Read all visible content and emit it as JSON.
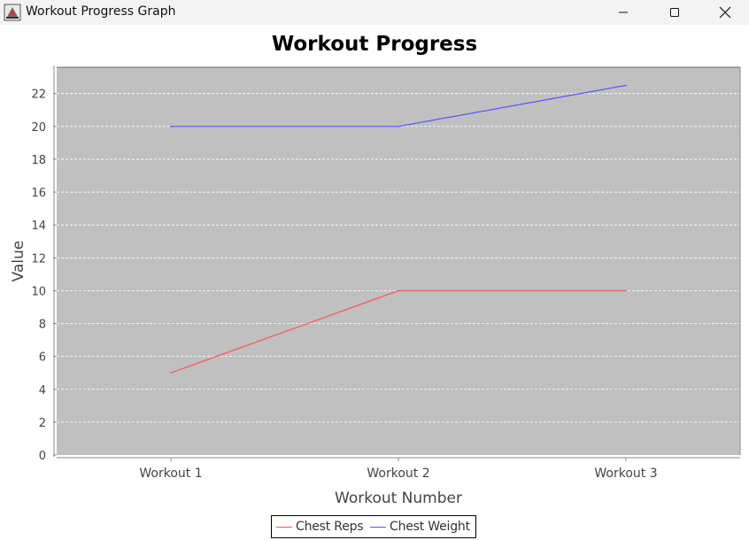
{
  "window": {
    "title": "Workout Progress Graph"
  },
  "controls": {
    "minimize": "minimize-icon",
    "maximize": "maximize-icon",
    "close": "close-icon"
  },
  "colors": {
    "plot_background": "#c0c0c0",
    "gridline": "#ffffff",
    "series_reps": "#ff5555",
    "series_weight": "#5555ff",
    "axis_text": "#444444"
  },
  "chart_data": {
    "type": "line",
    "title": "Workout Progress",
    "xlabel": "Workout Number",
    "ylabel": "Value",
    "categories": [
      "Workout 1",
      "Workout 2",
      "Workout 3"
    ],
    "series": [
      {
        "name": "Chest Reps",
        "values": [
          5,
          10,
          10
        ],
        "color": "#ff5555"
      },
      {
        "name": "Chest Weight",
        "values": [
          20,
          20,
          22.5
        ],
        "color": "#5555ff"
      }
    ],
    "ylim": [
      0,
      23.6
    ],
    "yticks": [
      0,
      2,
      4,
      6,
      8,
      10,
      12,
      14,
      16,
      18,
      20,
      22
    ],
    "grid": true,
    "legend_position": "bottom-center"
  }
}
